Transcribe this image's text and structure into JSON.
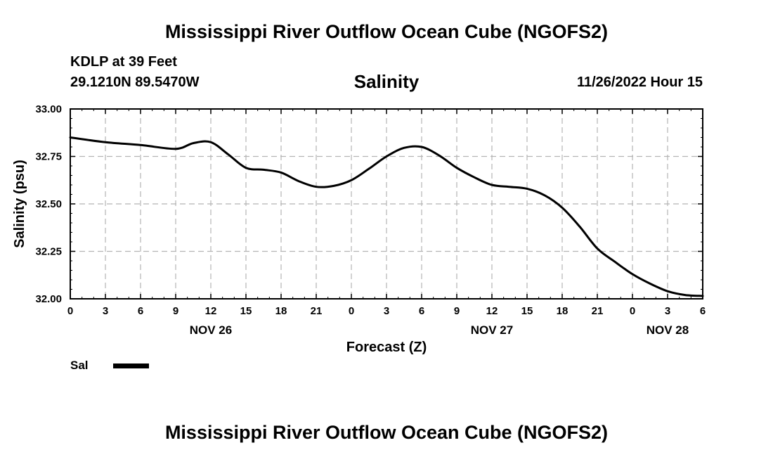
{
  "header": {
    "title": "Mississippi River Outflow Ocean Cube (NGOFS2)",
    "station": "KDLP at 39 Feet",
    "coords": "29.1210N  89.5470W",
    "variable": "Salinity",
    "datetime": "11/26/2022 Hour 15"
  },
  "footer": {
    "title": "Mississippi River Outflow Ocean Cube (NGOFS2)"
  },
  "legend": {
    "label": "Sal",
    "color": "#000000"
  },
  "chart_data": {
    "type": "line",
    "title": "Salinity",
    "xlabel": "Forecast (Z)",
    "ylabel": "Salinity (psu)",
    "xlim": [
      0,
      54
    ],
    "ylim": [
      32.0,
      33.0
    ],
    "grid": true,
    "x_ticks": [
      0,
      3,
      6,
      9,
      12,
      15,
      18,
      21,
      24,
      27,
      30,
      33,
      36,
      39,
      42,
      45,
      48,
      51,
      54
    ],
    "x_tick_labels": [
      "0",
      "3",
      "6",
      "9",
      "12",
      "15",
      "18",
      "21",
      "0",
      "3",
      "6",
      "9",
      "12",
      "15",
      "18",
      "21",
      "0",
      "3",
      "6"
    ],
    "y_ticks": [
      32.0,
      32.25,
      32.5,
      32.75,
      33.0
    ],
    "y_tick_labels": [
      "32.00",
      "32.25",
      "32.50",
      "32.75",
      "33.00"
    ],
    "day_labels": [
      {
        "x": 12,
        "label": "NOV 26"
      },
      {
        "x": 36,
        "label": "NOV 27"
      },
      {
        "x": 51,
        "label": "NOV 28"
      }
    ],
    "series": [
      {
        "name": "Sal",
        "x": [
          0,
          3,
          6,
          9,
          10.5,
          12,
          13.5,
          15,
          16.5,
          18,
          19.5,
          21,
          22.5,
          24,
          25.5,
          27,
          28.5,
          30,
          31.5,
          33,
          34.5,
          36,
          37.5,
          39,
          40.5,
          42,
          43.5,
          45,
          46.5,
          48,
          49.5,
          51,
          52.5,
          54
        ],
        "y": [
          32.85,
          32.825,
          32.81,
          32.79,
          32.82,
          32.825,
          32.76,
          32.69,
          32.68,
          32.665,
          32.62,
          32.59,
          32.595,
          32.625,
          32.685,
          32.75,
          32.795,
          32.8,
          32.755,
          32.69,
          32.64,
          32.6,
          32.59,
          32.58,
          32.545,
          32.48,
          32.38,
          32.265,
          32.195,
          32.13,
          32.08,
          32.04,
          32.02,
          32.015
        ]
      }
    ]
  }
}
